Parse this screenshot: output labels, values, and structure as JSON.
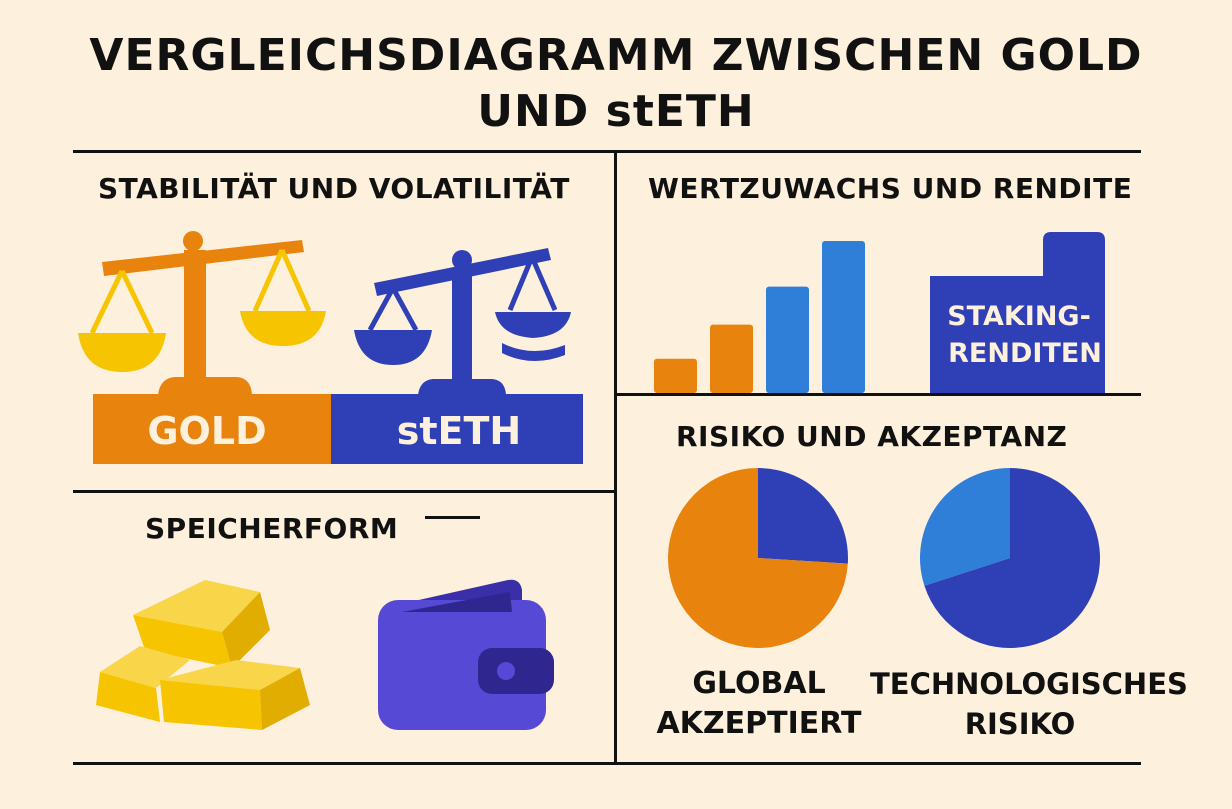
{
  "title": {
    "line1": "VERGLEICHSDIAGRAMM ZWISCHEN GOLD",
    "line2": "UND stETH"
  },
  "sections": {
    "stability": {
      "heading": "STABILITÄT UND VOLATILITÄT",
      "gold_label": "GOLD",
      "steth_label": "stETH"
    },
    "growth": {
      "heading": "WERTZUWACHS UND RENDITE",
      "staking_line1": "STAKING-",
      "staking_line2": "RENDITEN"
    },
    "storage": {
      "heading": "SPEICHERFORM"
    },
    "risk": {
      "heading": "RISIKO UND AKZEPTANZ",
      "gold_line1": "GLOBAL",
      "gold_line2": "AKZEPTIERT",
      "steth_line1": "TECHNOLOGISCHES",
      "steth_line2": "RISIKO"
    }
  },
  "colors": {
    "background": "#fdf0dc",
    "gold_orange": "#e8840e",
    "gold_yellow": "#f6c400",
    "steth_blue": "#2f3fb5",
    "steth_light_blue": "#2f7ed8",
    "wallet_purple": "#5549d6",
    "rule": "#111111"
  },
  "icons": {
    "gold_scale": "balance-scale-icon",
    "steth_scale": "balance-scale-icon",
    "gold_bars": "gold-bars-icon",
    "wallet": "wallet-icon"
  },
  "growth_bars": [
    {
      "color": "orange",
      "level": 0.18
    },
    {
      "color": "orange",
      "level": 0.36
    },
    {
      "color": "blue",
      "level": 0.56
    },
    {
      "color": "blue",
      "level": 0.8
    }
  ],
  "pies": {
    "global_accepted": {
      "segments": [
        {
          "color": "orange",
          "share": 0.74
        },
        {
          "color": "blue",
          "share": 0.26
        }
      ]
    },
    "tech_risk": {
      "segments": [
        {
          "color": "blue",
          "share": 0.7
        },
        {
          "color": "light_blue",
          "share": 0.3
        }
      ]
    }
  }
}
